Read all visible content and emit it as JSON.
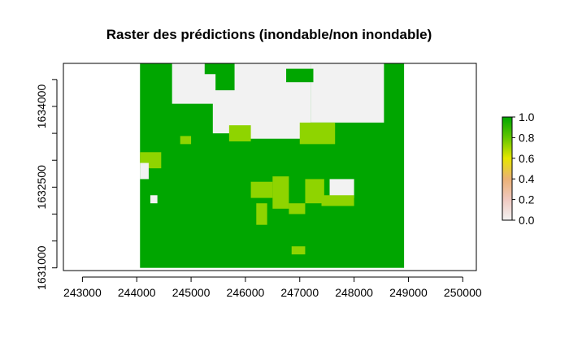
{
  "chart_data": {
    "type": "heatmap",
    "title": "Raster des prédictions (inondable/non inondable)",
    "xlabel": "",
    "ylabel": "",
    "xlim": [
      242650,
      250250
    ],
    "ylim": [
      1630950,
      1634800
    ],
    "x_ticks": [
      243000,
      244000,
      245000,
      246000,
      247000,
      248000,
      249000,
      250000
    ],
    "x_tick_labels": [
      "243000",
      "244000",
      "245000",
      "246000",
      "247000",
      "248000",
      "249000",
      "250000"
    ],
    "y_ticks": [
      1631000,
      1632500,
      1634000
    ],
    "y_tick_labels": [
      "1631000",
      "1632500",
      "1634000"
    ],
    "y_minor_ticks": [
      1631000,
      1631500,
      1632000,
      1632500,
      1633000,
      1633500,
      1634000,
      1634500
    ],
    "raster_extent": {
      "xmin": 244060,
      "xmax": 248920,
      "ymin": 1631000,
      "ymax": 1634800
    },
    "color_scale": {
      "min": 0.0,
      "max": 1.0,
      "tick_values": [
        0.0,
        0.2,
        0.4,
        0.6,
        0.8,
        1.0
      ],
      "tick_labels": [
        "0.0",
        "0.2",
        "0.4",
        "0.6",
        "0.8",
        "1.0"
      ],
      "colors": [
        "#f2f2f2",
        "#f0c9c0",
        "#ebb175",
        "#e6e600",
        "#63c600",
        "#00a600"
      ]
    },
    "value_colors": {
      "0.0": "#f2f2f2",
      "0.8": "#8fd400",
      "1.0": "#00a600"
    },
    "regions": [
      {
        "value": 0.0,
        "x": [
          245800,
          247200
        ],
        "y": [
          1633400,
          1634800
        ]
      },
      {
        "value": 0.0,
        "x": [
          247200,
          248550
        ],
        "y": [
          1633700,
          1634800
        ]
      },
      {
        "value": 0.0,
        "x": [
          244650,
          245450
        ],
        "y": [
          1634050,
          1634800
        ]
      },
      {
        "value": 0.0,
        "x": [
          245400,
          245850
        ],
        "y": [
          1633500,
          1634300
        ]
      },
      {
        "value": 0.0,
        "x": [
          247550,
          248000
        ],
        "y": [
          1632300,
          1632650
        ]
      },
      {
        "value": 0.8,
        "x": [
          245700,
          246100
        ],
        "y": [
          1633350,
          1633650
        ]
      },
      {
        "value": 0.8,
        "x": [
          247000,
          247650
        ],
        "y": [
          1633300,
          1633700
        ]
      },
      {
        "value": 0.8,
        "x": [
          246500,
          246800
        ],
        "y": [
          1632100,
          1632700
        ]
      },
      {
        "value": 0.8,
        "x": [
          246100,
          246500
        ],
        "y": [
          1632300,
          1632600
        ]
      },
      {
        "value": 0.8,
        "x": [
          246200,
          246400
        ],
        "y": [
          1631800,
          1632200
        ]
      },
      {
        "value": 0.8,
        "x": [
          247100,
          247450
        ],
        "y": [
          1632200,
          1632650
        ]
      },
      {
        "value": 0.8,
        "x": [
          247400,
          248000
        ],
        "y": [
          1632150,
          1632350
        ]
      },
      {
        "value": 0.8,
        "x": [
          244060,
          244450
        ],
        "y": [
          1632850,
          1633150
        ]
      },
      {
        "value": 0.8,
        "x": [
          244800,
          245000
        ],
        "y": [
          1633300,
          1633450
        ]
      },
      {
        "value": 0.8,
        "x": [
          246800,
          247100
        ],
        "y": [
          1632000,
          1632200
        ]
      },
      {
        "value": 0.8,
        "x": [
          246850,
          247100
        ],
        "y": [
          1631250,
          1631400
        ]
      },
      {
        "value": 1.0,
        "x": [
          246750,
          247250
        ],
        "y": [
          1634450,
          1634700
        ]
      },
      {
        "value": 1.0,
        "x": [
          245250,
          245550
        ],
        "y": [
          1634600,
          1634800
        ]
      },
      {
        "value": 0.0,
        "x": [
          244060,
          244220
        ],
        "y": [
          1632650,
          1632950
        ]
      },
      {
        "value": 0.0,
        "x": [
          244250,
          244380
        ],
        "y": [
          1632200,
          1632350
        ]
      }
    ]
  }
}
